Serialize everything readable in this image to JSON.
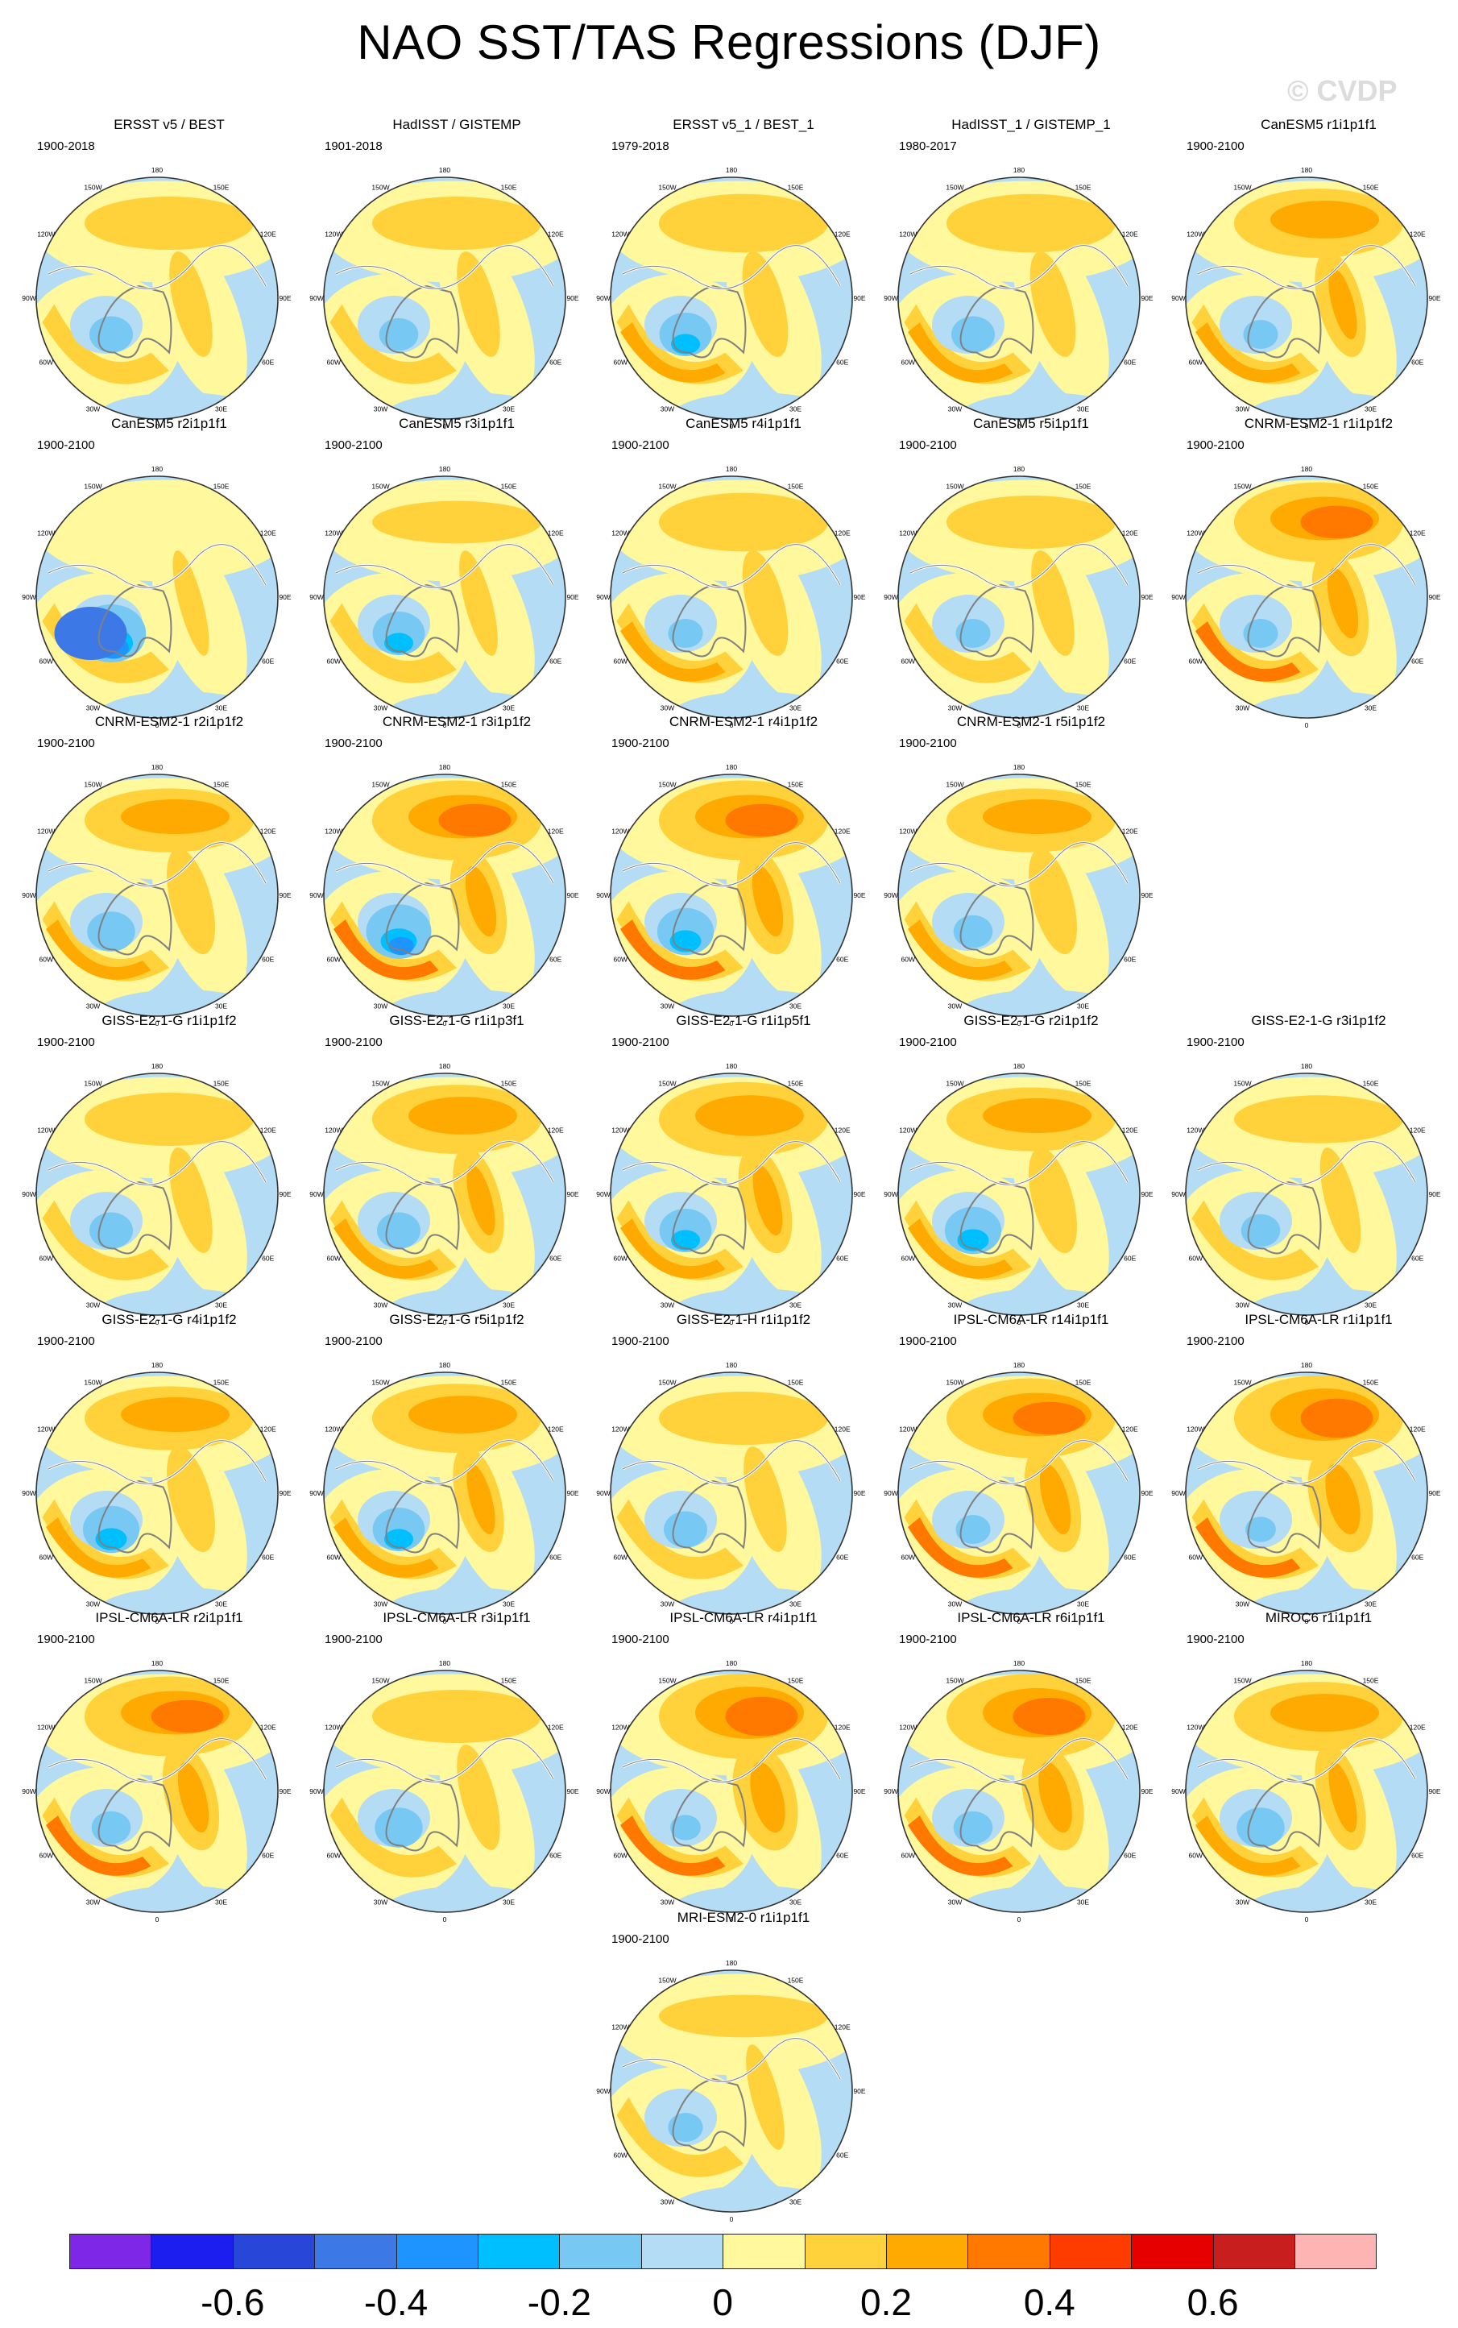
{
  "title": "NAO SST/TAS Regressions (DJF)",
  "watermark": "© CVDP",
  "map_labels": {
    "lon_180": "180",
    "lon_150e": "150E",
    "lon_120e": "120E",
    "lon_90e": "90E",
    "lon_60e": "60E",
    "lon_30e": "30E",
    "lon_0": "0",
    "lon_30w": "30W",
    "lon_60w": "60W",
    "lon_90w": "90W",
    "lon_120w": "120W",
    "lon_150w": "150W"
  },
  "colors": {
    "outline": "#333333",
    "land_contour": "#808080",
    "palette": [
      "#7f27e6",
      "#1c1ef0",
      "#2846d8",
      "#3c78e6",
      "#1e94ff",
      "#00bfff",
      "#78c8f4",
      "#b4dcf4",
      "#fff89c",
      "#ffd23c",
      "#ffaa00",
      "#ff7800",
      "#ff3c00",
      "#e60000",
      "#c81e1e",
      "#ffb4b4"
    ]
  },
  "colorbar": {
    "ticks": [
      "-0.6",
      "-0.4",
      "-0.2",
      "0",
      "0.2",
      "0.4",
      "0.6"
    ]
  },
  "panels": [
    {
      "title": "ERSST v5 / BEST",
      "period": "1900-2018",
      "row": 0,
      "col": 0,
      "warm": 1.0,
      "cold": 1.0
    },
    {
      "title": "HadISST / GISTEMP",
      "period": "1901-2018",
      "row": 0,
      "col": 1,
      "warm": 1.0,
      "cold": 0.9
    },
    {
      "title": "ERSST v5_1 / BEST_1",
      "period": "1979-2018",
      "row": 0,
      "col": 2,
      "warm": 1.1,
      "cold": 1.2
    },
    {
      "title": "HadISST_1 / GISTEMP_1",
      "period": "1980-2017",
      "row": 0,
      "col": 3,
      "warm": 1.1,
      "cold": 1.0
    },
    {
      "title": "CanESM5 r1i1p1f1",
      "period": "1900-2100",
      "row": 0,
      "col": 4,
      "warm": 1.3,
      "cold": 0.8
    },
    {
      "title": "CanESM5 r2i1p1f1",
      "period": "1900-2100",
      "row": 1,
      "col": 0,
      "warm": 0.5,
      "cold": 1.8
    },
    {
      "title": "CanESM5 r3i1p1f1",
      "period": "1900-2100",
      "row": 1,
      "col": 1,
      "warm": 0.8,
      "cold": 1.2
    },
    {
      "title": "CanESM5 r4i1p1f1",
      "period": "1900-2100",
      "row": 1,
      "col": 2,
      "warm": 1.1,
      "cold": 0.8
    },
    {
      "title": "CanESM5 r5i1p1f1",
      "period": "1900-2100",
      "row": 1,
      "col": 3,
      "warm": 1.0,
      "cold": 0.8
    },
    {
      "title": "CNRM-ESM2-1 r1i1p1f2",
      "period": "1900-2100",
      "row": 1,
      "col": 4,
      "warm": 1.5,
      "cold": 0.8
    },
    {
      "title": "CNRM-ESM2-1 r2i1p1f2",
      "period": "1900-2100",
      "row": 2,
      "col": 0,
      "warm": 1.2,
      "cold": 1.1
    },
    {
      "title": "CNRM-ESM2-1 r3i1p1f2",
      "period": "1900-2100",
      "row": 2,
      "col": 1,
      "warm": 1.5,
      "cold": 1.5
    },
    {
      "title": "CNRM-ESM2-1 r4i1p1f2",
      "period": "1900-2100",
      "row": 2,
      "col": 2,
      "warm": 1.5,
      "cold": 1.3
    },
    {
      "title": "CNRM-ESM2-1 r5i1p1f2",
      "period": "1900-2100",
      "row": 2,
      "col": 3,
      "warm": 1.2,
      "cold": 0.9
    },
    {
      "title": "GISS-E2-1-G r1i1p1f2",
      "period": "1900-2100",
      "row": 3,
      "col": 0,
      "warm": 1.0,
      "cold": 1.0
    },
    {
      "title": "GISS-E2-1-G r1i1p3f1",
      "period": "1900-2100",
      "row": 3,
      "col": 1,
      "warm": 1.3,
      "cold": 1.0
    },
    {
      "title": "GISS-E2-1-G r1i1p5f1",
      "period": "1900-2100",
      "row": 3,
      "col": 2,
      "warm": 1.4,
      "cold": 1.2
    },
    {
      "title": "GISS-E2-1-G r2i1p1f2",
      "period": "1900-2100",
      "row": 3,
      "col": 3,
      "warm": 1.2,
      "cold": 1.3
    },
    {
      "title": "GISS-E2-1-G r3i1p1f2",
      "period": "1900-2100",
      "row": 3,
      "col": 4,
      "warm": 0.9,
      "cold": 0.9
    },
    {
      "title": "GISS-E2-1-G r4i1p1f2",
      "period": "1900-2100",
      "row": 4,
      "col": 0,
      "warm": 1.2,
      "cold": 1.3
    },
    {
      "title": "GISS-E2-1-G r5i1p1f2",
      "period": "1900-2100",
      "row": 4,
      "col": 1,
      "warm": 1.3,
      "cold": 1.2
    },
    {
      "title": "GISS-E2-1-H r1i1p1f2",
      "period": "1900-2100",
      "row": 4,
      "col": 2,
      "warm": 1.0,
      "cold": 1.0
    },
    {
      "title": "IPSL-CM6A-LR r14i1p1f1",
      "period": "1900-2100",
      "row": 4,
      "col": 3,
      "warm": 1.5,
      "cold": 0.8
    },
    {
      "title": "IPSL-CM6A-LR r1i1p1f1",
      "period": "1900-2100",
      "row": 4,
      "col": 4,
      "warm": 1.8,
      "cold": 0.7
    },
    {
      "title": "IPSL-CM6A-LR r2i1p1f1",
      "period": "1900-2100",
      "row": 5,
      "col": 0,
      "warm": 1.5,
      "cold": 0.9
    },
    {
      "title": "IPSL-CM6A-LR r3i1p1f1",
      "period": "1900-2100",
      "row": 5,
      "col": 1,
      "warm": 1.0,
      "cold": 1.1
    },
    {
      "title": "IPSL-CM6A-LR r4i1p1f1",
      "period": "1900-2100",
      "row": 5,
      "col": 2,
      "warm": 1.8,
      "cold": 0.7
    },
    {
      "title": "IPSL-CM6A-LR r6i1p1f1",
      "period": "1900-2100",
      "row": 5,
      "col": 3,
      "warm": 1.7,
      "cold": 0.9
    },
    {
      "title": "MIROC6 r1i1p1f1",
      "period": "1900-2100",
      "row": 5,
      "col": 4,
      "warm": 1.3,
      "cold": 1.1
    },
    {
      "title": "MRI-ESM2-0 r1i1p1f1",
      "period": "1900-2100",
      "row": 6,
      "col": 2,
      "warm": 0.8,
      "cold": 0.8
    }
  ]
}
